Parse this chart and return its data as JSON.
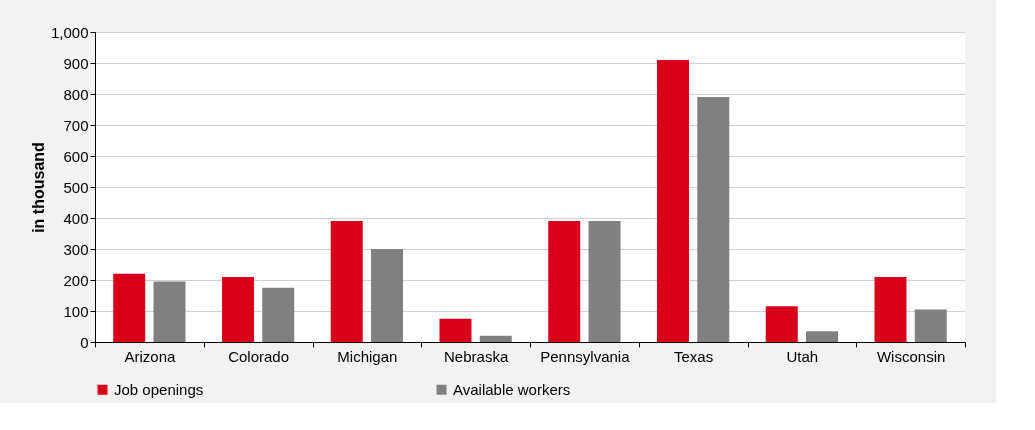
{
  "chart_data": {
    "type": "bar",
    "ylabel": "in thousand",
    "categories": [
      "Arizona",
      "Colorado",
      "Michigan",
      "Nebraska",
      "Pennsylvania",
      "Texas",
      "Utah",
      "Wisconsin"
    ],
    "series": [
      {
        "name": "Job openings",
        "color": "#d9001b",
        "values": [
          220,
          210,
          390,
          75,
          390,
          910,
          115,
          210
        ]
      },
      {
        "name": "Available workers",
        "color": "#808080",
        "values": [
          195,
          175,
          300,
          20,
          390,
          790,
          35,
          105
        ]
      }
    ],
    "ylim": [
      0,
      1000
    ],
    "yticks": [
      0,
      100,
      200,
      300,
      400,
      500,
      600,
      700,
      800,
      900,
      {
        "value": 1000,
        "label": "1,000"
      }
    ],
    "grid": "y",
    "legend": "bottom"
  }
}
